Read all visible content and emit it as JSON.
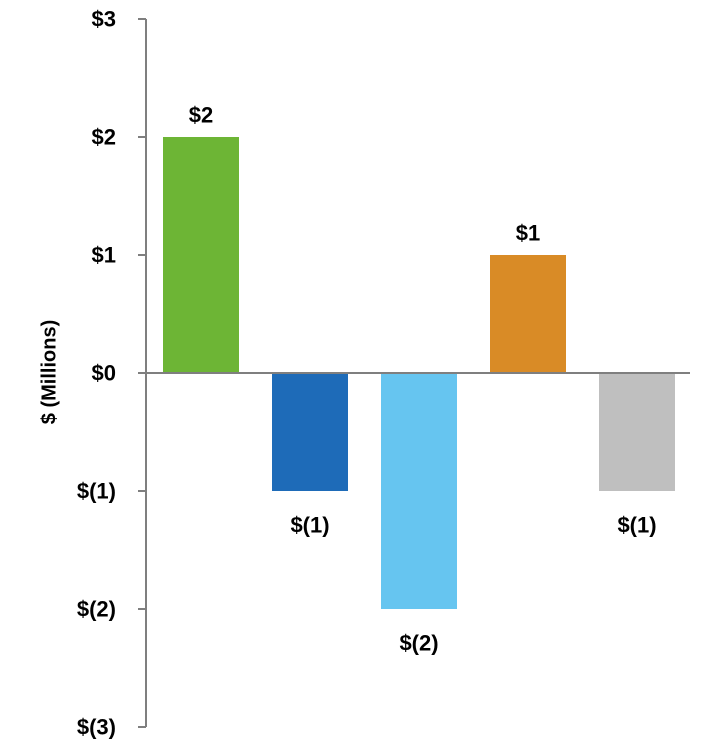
{
  "chart_data": {
    "type": "bar",
    "title": "",
    "xlabel": "",
    "ylabel": "$ (Millions)",
    "ylim": [
      -3,
      3
    ],
    "yticks": [
      {
        "value": 3,
        "label": "$3"
      },
      {
        "value": 2,
        "label": "$2"
      },
      {
        "value": 1,
        "label": "$1"
      },
      {
        "value": 0,
        "label": "$0"
      },
      {
        "value": -1,
        "label": "$(1)"
      },
      {
        "value": -2,
        "label": "$(2)"
      },
      {
        "value": -3,
        "label": "$(3)"
      }
    ],
    "bars": [
      {
        "value": 2,
        "label": "$2",
        "color": "#6db535"
      },
      {
        "value": -1,
        "label": "$(1)",
        "color": "#1e6bb8"
      },
      {
        "value": -2,
        "label": "$(2)",
        "color": "#66c5f0"
      },
      {
        "value": 1,
        "label": "$1",
        "color": "#d98b26"
      },
      {
        "value": -1,
        "label": "$(1)",
        "color": "#bfbfbf"
      }
    ],
    "axis_color": "#7f7f7f",
    "grid": false
  }
}
